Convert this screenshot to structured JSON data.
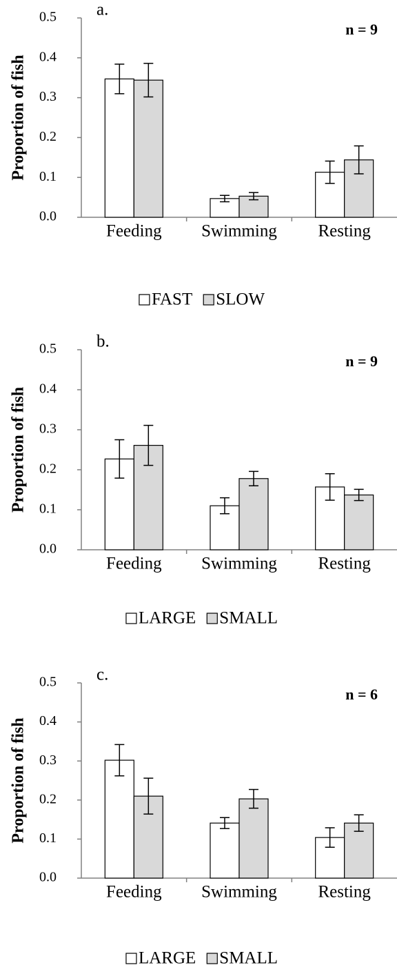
{
  "chart_data": [
    {
      "type": "bar",
      "panel_label": "a.",
      "annotation": "n = 9",
      "y_label": "Proportion of fish",
      "categories": [
        "Feeding",
        "Swimming",
        "Resting"
      ],
      "series": [
        {
          "name": "FAST",
          "color": "#ffffff",
          "values": [
            0.347,
            0.047,
            0.113
          ],
          "errors": [
            0.037,
            0.008,
            0.028
          ]
        },
        {
          "name": "SLOW",
          "color": "#d9d9d9",
          "values": [
            0.344,
            0.053,
            0.144
          ],
          "errors": [
            0.042,
            0.009,
            0.035
          ]
        }
      ],
      "ylim": [
        0,
        0.5
      ],
      "yticks": [
        {
          "value": 0,
          "label": "0.0"
        },
        0.1,
        0.2,
        0.3,
        0.4,
        0.5
      ]
    },
    {
      "type": "bar",
      "panel_label": "b.",
      "annotation": "n = 9",
      "y_label": "Proportion of fish",
      "categories": [
        "Feeding",
        "Swimming",
        "Resting"
      ],
      "series": [
        {
          "name": "LARGE",
          "color": "#ffffff",
          "values": [
            0.227,
            0.11,
            0.157
          ],
          "errors": [
            0.048,
            0.02,
            0.033
          ]
        },
        {
          "name": "SMALL",
          "color": "#d9d9d9",
          "values": [
            0.261,
            0.178,
            0.137
          ],
          "errors": [
            0.05,
            0.018,
            0.014
          ]
        }
      ],
      "ylim": [
        0,
        0.5
      ],
      "yticks": [
        {
          "value": 0,
          "label": "0.0"
        },
        0.1,
        0.2,
        0.3,
        0.4,
        0.5
      ]
    },
    {
      "type": "bar",
      "panel_label": "c.",
      "annotation": "n = 6",
      "y_label": "Proportion of fish",
      "categories": [
        "Feeding",
        "Swimming",
        "Resting"
      ],
      "series": [
        {
          "name": "LARGE",
          "color": "#ffffff",
          "values": [
            0.302,
            0.141,
            0.104
          ],
          "errors": [
            0.04,
            0.014,
            0.025
          ]
        },
        {
          "name": "SMALL",
          "color": "#d9d9d9",
          "values": [
            0.21,
            0.203,
            0.141
          ],
          "errors": [
            0.046,
            0.024,
            0.021
          ]
        }
      ],
      "ylim": [
        0,
        0.5
      ],
      "yticks": [
        {
          "value": 0,
          "label": "0.0"
        },
        0.1,
        0.2,
        0.3,
        0.4,
        0.5
      ]
    }
  ]
}
